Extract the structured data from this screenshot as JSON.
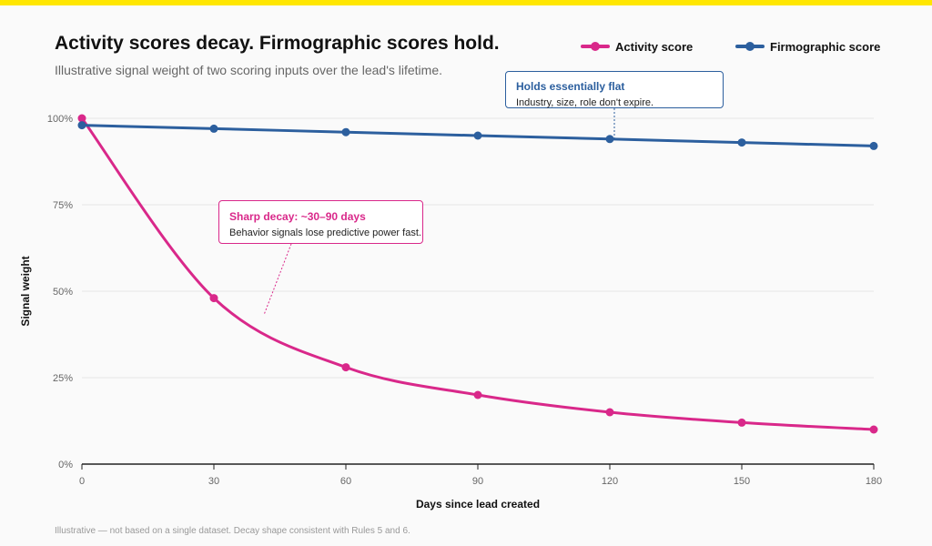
{
  "header": {
    "title": "Activity scores decay. Firmographic scores hold.",
    "subtitle": "Illustrative signal weight of two scoring inputs over the lead's lifetime."
  },
  "legend": [
    {
      "label": "Activity score",
      "color": "#d9288a"
    },
    {
      "label": "Firmographic score",
      "color": "#2c5f9e"
    }
  ],
  "callouts": {
    "flat": {
      "title": "Holds essentially flat",
      "body": "Industry, size, role don't expire.",
      "color": "#2c5f9e"
    },
    "decay": {
      "title": "Sharp decay: ~30–90 days",
      "body": "Behavior signals lose predictive power fast.",
      "color": "#d9288a"
    }
  },
  "footnote": "Illustrative — not based on a single dataset. Decay shape consistent with Rules 5 and 6.",
  "colors": {
    "accent_bar": "#ffe600",
    "activity": "#d9288a",
    "firmographic": "#2c5f9e",
    "grid": "#e6e6e6",
    "axis": "#222222"
  },
  "chart_data": {
    "type": "line",
    "title": "Activity scores decay. Firmographic scores hold.",
    "subtitle": "Illustrative signal weight of two scoring inputs over the lead's lifetime.",
    "xlabel": "Days since lead created",
    "ylabel": "Signal weight",
    "x": [
      0,
      30,
      60,
      90,
      120,
      150,
      180
    ],
    "xticks": [
      "0",
      "30",
      "60",
      "90",
      "120",
      "150",
      "180"
    ],
    "yticks": [
      "0%",
      "25%",
      "50%",
      "75%",
      "100%"
    ],
    "ytick_values": [
      0,
      25,
      50,
      75,
      100
    ],
    "xlim": [
      0,
      180
    ],
    "ylim": [
      0,
      100
    ],
    "grid": "horizontal",
    "legend_position": "top-right",
    "series": [
      {
        "name": "Activity score",
        "values": [
          100,
          48,
          28,
          20,
          15,
          12,
          10
        ]
      },
      {
        "name": "Firmographic score",
        "values": [
          98,
          97,
          96,
          95,
          94,
          93,
          92
        ]
      }
    ]
  }
}
